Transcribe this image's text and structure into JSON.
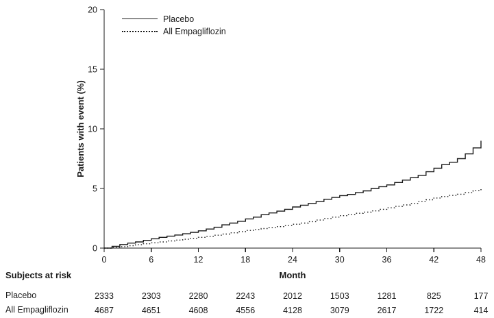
{
  "chart_data": {
    "type": "line",
    "title": "",
    "xlabel": "Month",
    "ylabel": "Patients with event (%)",
    "xlim": [
      0,
      48
    ],
    "ylim": [
      0,
      20
    ],
    "xticks": [
      0,
      6,
      12,
      18,
      24,
      30,
      36,
      42,
      48
    ],
    "yticks": [
      0,
      5,
      10,
      15,
      20
    ],
    "grid": false,
    "legend_position": "top-left-inside",
    "line_color": "#1a1a1a",
    "step": true,
    "x": [
      0,
      1,
      2,
      3,
      4,
      5,
      6,
      7,
      8,
      9,
      10,
      11,
      12,
      13,
      14,
      15,
      16,
      17,
      18,
      19,
      20,
      21,
      22,
      23,
      24,
      25,
      26,
      27,
      28,
      29,
      30,
      31,
      32,
      33,
      34,
      35,
      36,
      37,
      38,
      39,
      40,
      41,
      42,
      43,
      44,
      45,
      46,
      47,
      48
    ],
    "series": [
      {
        "name": "Placebo",
        "line_style": "solid",
        "values": [
          0,
          0.15,
          0.3,
          0.42,
          0.52,
          0.65,
          0.78,
          0.9,
          1.0,
          1.1,
          1.2,
          1.32,
          1.45,
          1.6,
          1.75,
          1.95,
          2.1,
          2.25,
          2.45,
          2.6,
          2.8,
          2.95,
          3.1,
          3.25,
          3.45,
          3.6,
          3.75,
          3.9,
          4.1,
          4.25,
          4.4,
          4.5,
          4.65,
          4.8,
          5.0,
          5.15,
          5.3,
          5.5,
          5.7,
          5.9,
          6.1,
          6.4,
          6.7,
          7.0,
          7.2,
          7.5,
          7.9,
          8.4,
          9.0
        ]
      },
      {
        "name": "All Empagliflozin",
        "line_style": "dotted",
        "values": [
          0,
          0.05,
          0.12,
          0.2,
          0.28,
          0.36,
          0.44,
          0.52,
          0.6,
          0.67,
          0.74,
          0.82,
          0.9,
          0.98,
          1.08,
          1.18,
          1.28,
          1.38,
          1.48,
          1.56,
          1.64,
          1.72,
          1.8,
          1.9,
          2.0,
          2.1,
          2.22,
          2.35,
          2.48,
          2.6,
          2.72,
          2.82,
          2.92,
          3.02,
          3.12,
          3.25,
          3.38,
          3.5,
          3.62,
          3.75,
          3.9,
          4.05,
          4.2,
          4.32,
          4.42,
          4.52,
          4.65,
          4.82,
          5.0
        ]
      }
    ]
  },
  "risk_table": {
    "heading": "Subjects at risk",
    "months": [
      0,
      6,
      12,
      18,
      24,
      30,
      36,
      42,
      48
    ],
    "rows": [
      {
        "label": "Placebo",
        "values": [
          2333,
          2303,
          2280,
          2243,
          2012,
          1503,
          1281,
          825,
          177
        ]
      },
      {
        "label": "All Empagliflozin",
        "values": [
          4687,
          4651,
          4608,
          4556,
          4128,
          3079,
          2617,
          1722,
          414
        ]
      }
    ]
  }
}
